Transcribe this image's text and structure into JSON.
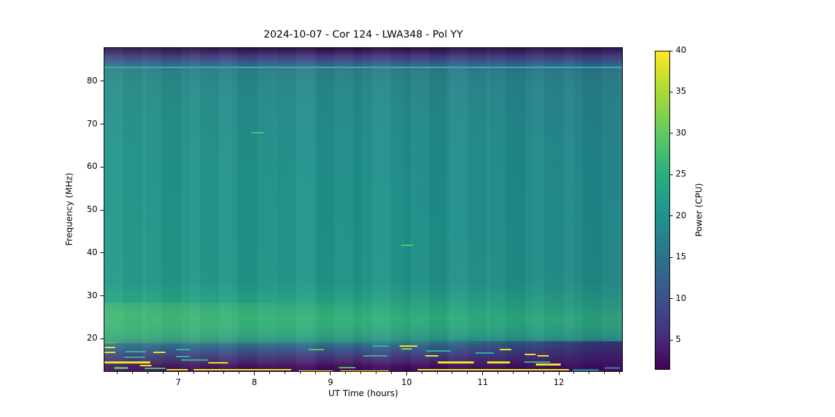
{
  "title": "2024-10-07 - Cor 124 - LWA348 - Pol YY",
  "axes": {
    "x": {
      "label": "UT Time (hours)",
      "ticks": [
        7,
        8,
        9,
        10,
        11,
        12
      ],
      "range": [
        6.02,
        12.84
      ],
      "minor_step": 0.2
    },
    "y": {
      "label": "Frequency (MHz)",
      "ticks": [
        20,
        30,
        40,
        50,
        60,
        70,
        80
      ],
      "range": [
        12.3,
        87.9
      ]
    }
  },
  "colorbar": {
    "label": "Power (CPU)",
    "ticks": [
      5,
      10,
      15,
      20,
      25,
      30,
      35,
      40
    ],
    "range": [
      1.4,
      40
    ],
    "colormap": "viridis"
  },
  "chart_data": {
    "type": "heatmap",
    "title": "2024-10-07 - Cor 124 - LWA348 - Pol YY",
    "xlabel": "UT Time (hours)",
    "ylabel": "Frequency (MHz)",
    "x_range_hours": [
      6.02,
      12.84
    ],
    "y_range_mhz": [
      12.3,
      87.9
    ],
    "colorbar_label": "Power (CPU)",
    "color_range": [
      1.4,
      40
    ],
    "colormap": "viridis",
    "bands": [
      {
        "freq_mhz": [
          85.5,
          87.9
        ],
        "power": 2,
        "note": "dark purple band at top edge"
      },
      {
        "freq_mhz": [
          79,
          85.5
        ],
        "power": 12,
        "note": "blue transition below top band"
      },
      {
        "freq_mhz": [
          83.4,
          83.6
        ],
        "power": 23,
        "note": "thin bright teal line across full time range"
      },
      {
        "freq_mhz": [
          30,
          79
        ],
        "power": 20,
        "note": "broad teal background, slightly greener early, bluer late"
      },
      {
        "freq_mhz": [
          19.5,
          29
        ],
        "power": 26,
        "note": "bright green enhancement, strongest 6-8 h around 24 MHz"
      },
      {
        "freq_mhz": [
          12.3,
          19.5
        ],
        "power": 5,
        "note": "dark purple band with many saturated RFI streaks"
      }
    ],
    "features": [
      {
        "t": [
          9.91,
          10.08
        ],
        "freq_mhz": 41.9,
        "power": 32,
        "note": "short bright green dash near 10 h"
      },
      {
        "t": [
          7.95,
          8.11
        ],
        "freq_mhz": 68.2,
        "power": 30,
        "note": "short green dash near 8 h"
      }
    ],
    "palette": {
      "yellow": "#f6e620",
      "green": "#52c569",
      "lightgreen": "#90d743",
      "teal": "#2bb69a",
      "steel": "#2a788e",
      "blue": "#44609d",
      "aqualine": "#34b0a8"
    },
    "rfi_streaks": [
      {
        "t1": 6.02,
        "t2": 12.84,
        "f": 83.4,
        "c": "aqualine",
        "h": 2
      },
      {
        "t1": 6.02,
        "t2": 6.17,
        "f": 19.2,
        "c": "green",
        "h": 2
      },
      {
        "t1": 6.02,
        "t2": 6.17,
        "f": 18.2,
        "c": "yellow",
        "h": 2
      },
      {
        "t1": 6.02,
        "t2": 6.17,
        "f": 17.0,
        "c": "yellow",
        "h": 2
      },
      {
        "t1": 6.29,
        "t2": 6.57,
        "f": 17.2,
        "c": "teal",
        "h": 2
      },
      {
        "t1": 6.28,
        "t2": 6.56,
        "f": 15.9,
        "c": "teal",
        "h": 2
      },
      {
        "t1": 6.66,
        "t2": 6.82,
        "f": 17.0,
        "c": "yellow",
        "h": 2
      },
      {
        "t1": 6.96,
        "t2": 7.14,
        "f": 17.6,
        "c": "teal",
        "h": 2
      },
      {
        "t1": 6.96,
        "t2": 7.14,
        "f": 16.1,
        "c": "teal",
        "h": 2
      },
      {
        "t1": 6.02,
        "t2": 6.62,
        "f": 14.6,
        "c": "yellow",
        "h": 3
      },
      {
        "t1": 6.49,
        "t2": 6.64,
        "f": 13.9,
        "c": "yellow",
        "h": 2
      },
      {
        "t1": 6.15,
        "t2": 6.33,
        "f": 13.3,
        "c": "green",
        "h": 3
      },
      {
        "t1": 6.55,
        "t2": 6.82,
        "f": 13.3,
        "c": "green",
        "h": 2
      },
      {
        "t1": 6.83,
        "t2": 7.12,
        "f": 12.9,
        "c": "yellow",
        "h": 2
      },
      {
        "t1": 7.19,
        "t2": 8.48,
        "f": 12.9,
        "c": "yellow",
        "h": 2
      },
      {
        "t1": 7.38,
        "t2": 7.65,
        "f": 14.6,
        "c": "yellow",
        "h": 2
      },
      {
        "t1": 7.03,
        "t2": 7.38,
        "f": 15.2,
        "c": "teal",
        "h": 2
      },
      {
        "t1": 7.95,
        "t2": 8.11,
        "f": 68.2,
        "c": "green",
        "h": 2
      },
      {
        "t1": 8.7,
        "t2": 8.91,
        "f": 17.6,
        "c": "green",
        "h": 2
      },
      {
        "t1": 9.1,
        "t2": 9.32,
        "f": 13.4,
        "c": "green",
        "h": 2
      },
      {
        "t1": 9.42,
        "t2": 9.74,
        "f": 16.2,
        "c": "teal",
        "h": 2
      },
      {
        "t1": 9.54,
        "t2": 9.76,
        "f": 18.5,
        "c": "teal",
        "h": 2
      },
      {
        "t1": 9.9,
        "t2": 10.13,
        "f": 18.5,
        "c": "yellow",
        "h": 2
      },
      {
        "t1": 9.91,
        "t2": 10.08,
        "f": 41.9,
        "c": "green",
        "h": 2
      },
      {
        "t1": 9.92,
        "t2": 10.06,
        "f": 17.8,
        "c": "lightgreen",
        "h": 2
      },
      {
        "t1": 10.23,
        "t2": 10.41,
        "f": 16.2,
        "c": "yellow",
        "h": 2
      },
      {
        "t1": 10.24,
        "t2": 10.57,
        "f": 17.3,
        "c": "teal",
        "h": 2
      },
      {
        "t1": 10.4,
        "t2": 10.87,
        "f": 14.7,
        "c": "yellow",
        "h": 3
      },
      {
        "t1": 11.05,
        "t2": 11.35,
        "f": 14.6,
        "c": "yellow",
        "h": 3
      },
      {
        "t1": 10.89,
        "t2": 11.14,
        "f": 16.9,
        "c": "teal",
        "h": 2
      },
      {
        "t1": 11.21,
        "t2": 11.37,
        "f": 17.7,
        "c": "yellow",
        "h": 2
      },
      {
        "t1": 11.54,
        "t2": 11.69,
        "f": 16.5,
        "c": "yellow",
        "h": 2
      },
      {
        "t1": 11.71,
        "t2": 11.86,
        "f": 16.2,
        "c": "yellow",
        "h": 2
      },
      {
        "t1": 11.53,
        "t2": 11.88,
        "f": 14.7,
        "c": "teal",
        "h": 2
      },
      {
        "t1": 11.69,
        "t2": 12.02,
        "f": 14.1,
        "c": "yellow",
        "h": 3
      },
      {
        "t1": 8.57,
        "t2": 9.03,
        "f": 12.7,
        "c": "yellow",
        "h": 2
      },
      {
        "t1": 9.12,
        "t2": 9.76,
        "f": 12.6,
        "c": "yellow",
        "h": 2
      },
      {
        "t1": 10.13,
        "t2": 12.13,
        "f": 12.9,
        "c": "yellow",
        "h": 2
      },
      {
        "t1": 12.17,
        "t2": 12.52,
        "f": 12.9,
        "c": "steel",
        "h": 3
      },
      {
        "t1": 12.59,
        "t2": 12.79,
        "f": 13.4,
        "c": "blue",
        "h": 3
      }
    ]
  }
}
